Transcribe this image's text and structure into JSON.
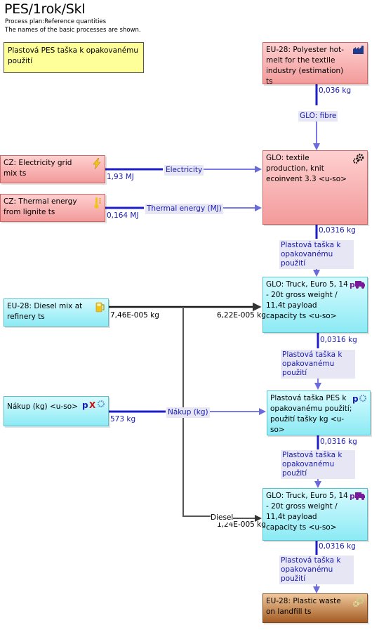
{
  "header": {
    "title": "PES/1rok/Skl",
    "subtitle1": "Process plan:Reference quantities",
    "subtitle2": "The names of the basic processes are shown."
  },
  "note": {
    "text": "Plastová PES taška k opakovanému použití"
  },
  "processes": {
    "polyester": {
      "text": "EU-28: Polyester hot-melt for the textile industry (estimation) ts",
      "icon": "factory-icon"
    },
    "electricity": {
      "text": "CZ: Electricity grid mix ts",
      "icon": "lightning-icon"
    },
    "thermal": {
      "text": "CZ: Thermal energy from lignite ts",
      "icon": "thermometer-icon"
    },
    "textile": {
      "text": "GLO: textile production, knit ecoinvent 3.3 <u-so>",
      "icon": "gears-icon"
    },
    "diesel": {
      "text": "EU-28: Diesel mix at refinery ts",
      "icon": "fuel-pump-icon"
    },
    "truck1": {
      "text": "GLO: Truck, Euro 5, 14 - 20t gross weight / 11,4t payload capacity ts <u-so>",
      "icon": "truck-icon"
    },
    "nakup": {
      "text": "Nákup (kg) <u-so>",
      "icon": "parameter-icon"
    },
    "usage": {
      "text": "Plastová taška PES k opakovanému použití; použití tašky kg <u-so>",
      "icon": "parameter-gear-icon"
    },
    "truck2": {
      "text": "GLO: Truck, Euro 5, 14 - 20t gross weight / 11,4t payload capacity ts <u-so>",
      "icon": "truck-icon"
    },
    "waste": {
      "text": "EU-28: Plastic waste on landfill ts",
      "icon": "recycle-gears-icon"
    }
  },
  "flows": {
    "f1": {
      "amount": "0,036 kg",
      "name": "GLO: fibre"
    },
    "f2": {
      "amount": "1,93 MJ",
      "name": "Electricity"
    },
    "f3": {
      "amount": "0,164 MJ",
      "name": "Thermal energy (MJ)"
    },
    "f4": {
      "amount": "0,0316 kg",
      "name": "Plastová taška k opakovanému použití"
    },
    "f5": {
      "amount_out": "7,46E-005 kg",
      "amount_in": "6,22E-005 kg"
    },
    "f6": {
      "amount": "0,0316 kg",
      "name": "Plastová taška k opakovanému použití"
    },
    "f7": {
      "amount": "573 kg",
      "name": "Nákup (kg)"
    },
    "f8": {
      "amount": "0,0316 kg",
      "name": "Plastová taška k opakovanému použití"
    },
    "f9": {
      "amount": "1,24E-005 kg",
      "name": "Diesel"
    },
    "f10": {
      "amount": "0,0316 kg",
      "name": "Plastová taška k opakovanému použití"
    }
  },
  "colors": {
    "flow": "#1e1ec8",
    "flow_light": "#7a7ae6",
    "diesel_flow": "#1a1a1a",
    "process_red": "#f29a9a",
    "process_cyan": "#8ceaf4",
    "process_brown": "#a35c24",
    "note_yellow": "#ffff99"
  }
}
